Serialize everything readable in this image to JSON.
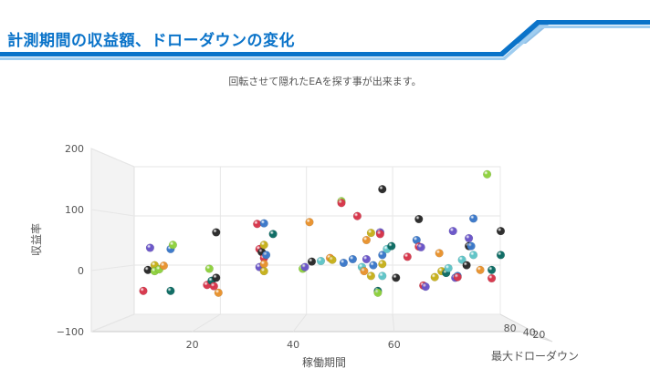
{
  "header": {
    "title": "計測期間の収益額、ドローダウンの変化",
    "accent_color": "#0a73c9"
  },
  "chart_data": {
    "type": "scatter3d",
    "title": "",
    "subtitle": "回転させて隠れたEAを探す事が出来ます。",
    "xlabel": "稼働期間",
    "ylabel": "収益率",
    "zlabel": "最大ドローダウン",
    "xlim": [
      0,
      85
    ],
    "ylim": [
      -100,
      200
    ],
    "zlim": [
      0,
      100
    ],
    "xticks": [
      20,
      40,
      60
    ],
    "yticks": [
      -100,
      0,
      100,
      200
    ],
    "zticks": [
      20,
      40,
      80
    ],
    "grid": true,
    "legend": "none",
    "colors": [
      "#3b78c9",
      "#e8922e",
      "#8fd13f",
      "#2a2a2a",
      "#6a55c8",
      "#d7364b",
      "#0d6b63",
      "#5fc4c7",
      "#c6b01c"
    ],
    "points": [
      {
        "x": 3,
        "y": -35,
        "c": 5
      },
      {
        "x": 4,
        "y": 0,
        "c": 3
      },
      {
        "x": 4.5,
        "y": 37,
        "c": 4
      },
      {
        "x": 5.5,
        "y": 8,
        "c": 8
      },
      {
        "x": 5.5,
        "y": -2,
        "c": 2
      },
      {
        "x": 6.5,
        "y": 1,
        "c": 2
      },
      {
        "x": 7.5,
        "y": 7,
        "c": 1
      },
      {
        "x": 9,
        "y": 35,
        "c": 0
      },
      {
        "x": 9.5,
        "y": 42,
        "c": 2
      },
      {
        "x": 9,
        "y": -35,
        "c": 6
      },
      {
        "x": 17,
        "y": -25,
        "c": 5
      },
      {
        "x": 17.5,
        "y": 2,
        "c": 2
      },
      {
        "x": 18,
        "y": -18,
        "c": 6
      },
      {
        "x": 18.5,
        "y": -27,
        "c": 5
      },
      {
        "x": 19,
        "y": 63,
        "c": 3
      },
      {
        "x": 19,
        "y": -13,
        "c": 3
      },
      {
        "x": 19.5,
        "y": -38,
        "c": 1
      },
      {
        "x": 28,
        "y": 77,
        "c": 5
      },
      {
        "x": 28.5,
        "y": 35,
        "c": 5
      },
      {
        "x": 28.5,
        "y": 5,
        "c": 4
      },
      {
        "x": 29,
        "y": 30,
        "c": 3
      },
      {
        "x": 29.5,
        "y": 78,
        "c": 0
      },
      {
        "x": 29.5,
        "y": 42,
        "c": 8
      },
      {
        "x": 29.5,
        "y": 20,
        "c": 5
      },
      {
        "x": 30,
        "y": 25,
        "c": 0
      },
      {
        "x": 29.5,
        "y": 10,
        "c": 1
      },
      {
        "x": 29.5,
        "y": -2,
        "c": 8
      },
      {
        "x": 31.5,
        "y": 60,
        "c": 6
      },
      {
        "x": 38,
        "y": 2,
        "c": 2
      },
      {
        "x": 38.5,
        "y": 5,
        "c": 4
      },
      {
        "x": 40,
        "y": 14,
        "c": 3
      },
      {
        "x": 39.5,
        "y": 80,
        "c": 1
      },
      {
        "x": 42,
        "y": 15,
        "c": 7
      },
      {
        "x": 44,
        "y": 20,
        "c": 1
      },
      {
        "x": 44.5,
        "y": 17,
        "c": 8
      },
      {
        "x": 46.5,
        "y": 115,
        "c": 2
      },
      {
        "x": 46.5,
        "y": 112,
        "c": 5
      },
      {
        "x": 47,
        "y": 12,
        "c": 0
      },
      {
        "x": 49,
        "y": 18,
        "c": 0
      },
      {
        "x": 50,
        "y": 90,
        "c": 5
      },
      {
        "x": 51,
        "y": 5,
        "c": 7
      },
      {
        "x": 51.5,
        "y": -2,
        "c": 1
      },
      {
        "x": 52,
        "y": 18,
        "c": 4
      },
      {
        "x": 52,
        "y": 50,
        "c": 1
      },
      {
        "x": 53,
        "y": 62,
        "c": 8
      },
      {
        "x": 53,
        "y": -10,
        "c": 8
      },
      {
        "x": 53.5,
        "y": 8,
        "c": 0
      },
      {
        "x": 55.5,
        "y": 135,
        "c": 3
      },
      {
        "x": 55,
        "y": 63,
        "c": 4
      },
      {
        "x": 55,
        "y": 60,
        "c": 5
      },
      {
        "x": 55.5,
        "y": 25,
        "c": 0
      },
      {
        "x": 55.5,
        "y": 10,
        "c": 8
      },
      {
        "x": 55.5,
        "y": -10,
        "c": 7
      },
      {
        "x": 54.5,
        "y": -35,
        "c": 6
      },
      {
        "x": 54.5,
        "y": -38,
        "c": 2
      },
      {
        "x": 56.5,
        "y": 35,
        "c": 7
      },
      {
        "x": 57.5,
        "y": 40,
        "c": 6
      },
      {
        "x": 58.5,
        "y": -13,
        "c": 3
      },
      {
        "x": 61,
        "y": 22,
        "c": 5
      },
      {
        "x": 63,
        "y": 50,
        "c": 0
      },
      {
        "x": 63.5,
        "y": 39,
        "c": 5
      },
      {
        "x": 64,
        "y": 38,
        "c": 4
      },
      {
        "x": 63.5,
        "y": 85,
        "c": 3
      },
      {
        "x": 64.5,
        "y": -26,
        "c": 5
      },
      {
        "x": 65,
        "y": -28,
        "c": 4
      },
      {
        "x": 67,
        "y": -12,
        "c": 8
      },
      {
        "x": 68,
        "y": 28,
        "c": 1
      },
      {
        "x": 68.5,
        "y": -2,
        "c": 8
      },
      {
        "x": 69.5,
        "y": -5,
        "c": 6
      },
      {
        "x": 70,
        "y": 3,
        "c": 7
      },
      {
        "x": 71,
        "y": 65,
        "c": 4
      },
      {
        "x": 71.5,
        "y": -13,
        "c": 4
      },
      {
        "x": 72,
        "y": -10,
        "c": 0
      },
      {
        "x": 72,
        "y": -12,
        "c": 5
      },
      {
        "x": 73,
        "y": 17,
        "c": 7
      },
      {
        "x": 74.5,
        "y": 53,
        "c": 4
      },
      {
        "x": 74.5,
        "y": 40,
        "c": 3
      },
      {
        "x": 74,
        "y": 8,
        "c": 3
      },
      {
        "x": 75,
        "y": 40,
        "c": 0
      },
      {
        "x": 75.5,
        "y": 86,
        "c": 0
      },
      {
        "x": 75.5,
        "y": 25,
        "c": 7
      },
      {
        "x": 77,
        "y": 0,
        "c": 1
      },
      {
        "x": 78.5,
        "y": 160,
        "c": 2
      },
      {
        "x": 79.5,
        "y": 0,
        "c": 6
      },
      {
        "x": 79.5,
        "y": -14,
        "c": 5
      },
      {
        "x": 81.5,
        "y": 65,
        "c": 3
      },
      {
        "x": 81.5,
        "y": 25,
        "c": 6
      }
    ]
  }
}
